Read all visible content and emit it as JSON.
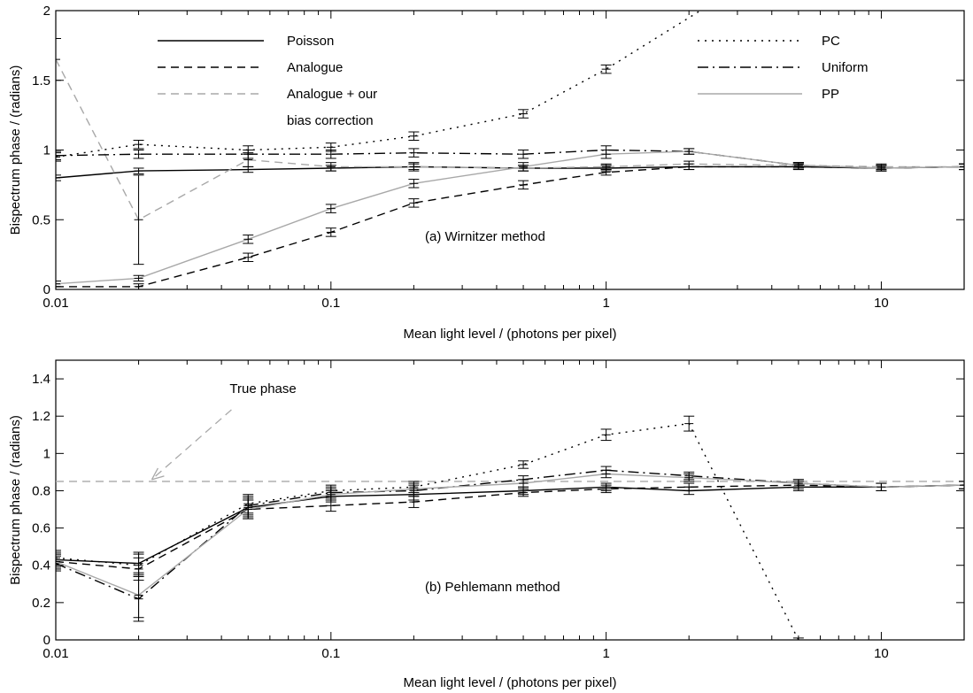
{
  "chart_data": [
    {
      "type": "line",
      "panel_label": "(a) Wirnitzer method",
      "xlabel": "Mean light level / (photons per pixel)",
      "ylabel": "Bispectrum phase / (radians)",
      "xscale": "log",
      "xlim": [
        0.01,
        20
      ],
      "ylim": [
        0,
        2
      ],
      "xticks": [
        0.01,
        0.1,
        1,
        10
      ],
      "xtick_labels": [
        "0.01",
        "0.1",
        "1",
        "10"
      ],
      "yticks": [
        0,
        0.5,
        1,
        1.5,
        2
      ],
      "ytick_labels": [
        "0",
        "0.5",
        "1",
        "1.5",
        "2"
      ],
      "legend": {
        "placement": "top",
        "entries": [
          {
            "series": "Poisson",
            "label": "Poisson"
          },
          {
            "series": "Analogue",
            "label": "Analogue"
          },
          {
            "series": "Analogue + our bias correction",
            "label_lines": [
              "Analogue + our",
              "bias correction"
            ]
          },
          {
            "series": "PC",
            "label": "PC"
          },
          {
            "series": "Uniform",
            "label": "Uniform"
          },
          {
            "series": "PP",
            "label": "PP"
          }
        ]
      },
      "series": [
        {
          "name": "Poisson",
          "color": "#000000",
          "dash": "solid",
          "x": [
            0.01,
            0.02,
            0.05,
            0.1,
            0.2,
            0.5,
            1,
            2,
            5,
            10,
            20
          ],
          "y": [
            0.8,
            0.85,
            0.86,
            0.87,
            0.88,
            0.87,
            0.87,
            0.88,
            0.88,
            0.87,
            0.88
          ],
          "err": [
            0.02,
            0.02,
            0.02,
            0.02,
            0.02,
            0.02,
            0.02,
            0.02,
            0.02,
            0.02,
            0.02
          ]
        },
        {
          "name": "Analogue",
          "color": "#000000",
          "dash": "dashed",
          "x": [
            0.01,
            0.02,
            0.05,
            0.1,
            0.2,
            0.5,
            1,
            2,
            5,
            10,
            20
          ],
          "y": [
            0.02,
            0.02,
            0.23,
            0.41,
            0.62,
            0.75,
            0.84,
            0.88,
            0.88,
            0.87,
            0.88
          ],
          "err": [
            0.02,
            0.02,
            0.03,
            0.03,
            0.03,
            0.03,
            0.02,
            0.02,
            0.02,
            0.02,
            0.02
          ]
        },
        {
          "name": "Analogue + our bias correction",
          "color": "#a8a8a8",
          "dash": "dashed",
          "x": [
            0.01,
            0.02,
            0.05,
            0.1,
            0.2,
            0.5,
            1,
            2,
            5,
            10,
            20
          ],
          "y": [
            1.65,
            0.5,
            0.93,
            0.88,
            0.88,
            0.87,
            0.88,
            0.9,
            0.89,
            0.88,
            0.88
          ],
          "err": [
            0.15,
            0.32,
            0.05,
            0.03,
            0.03,
            0.02,
            0.02,
            0.02,
            0.02,
            0.02,
            0.02
          ]
        },
        {
          "name": "PC",
          "color": "#000000",
          "dash": "dotted",
          "x": [
            0.01,
            0.02,
            0.05,
            0.1,
            0.2,
            0.5,
            1,
            2.2
          ],
          "y": [
            0.95,
            1.04,
            1.0,
            1.02,
            1.1,
            1.26,
            1.58,
            2.0
          ],
          "err": [
            0.03,
            0.03,
            0.03,
            0.03,
            0.03,
            0.03,
            0.03,
            0
          ]
        },
        {
          "name": "Uniform",
          "color": "#000000",
          "dash": "dashdot",
          "x": [
            0.01,
            0.02,
            0.05,
            0.1,
            0.2,
            0.5,
            1,
            2,
            5,
            10,
            20
          ],
          "y": [
            0.96,
            0.97,
            0.97,
            0.97,
            0.98,
            0.97,
            1.0,
            0.99,
            0.89,
            0.87,
            0.88
          ],
          "err": [
            0.03,
            0.03,
            0.03,
            0.03,
            0.03,
            0.03,
            0.03,
            0.02,
            0.02,
            0.02,
            0.02
          ]
        },
        {
          "name": "PP",
          "color": "#a8a8a8",
          "dash": "solid",
          "x": [
            0.01,
            0.02,
            0.05,
            0.1,
            0.2,
            0.5,
            1,
            2,
            5,
            10,
            20
          ],
          "y": [
            0.04,
            0.08,
            0.36,
            0.58,
            0.76,
            0.88,
            0.97,
            0.99,
            0.89,
            0.87,
            0.88
          ],
          "err": [
            0.02,
            0.02,
            0.03,
            0.03,
            0.03,
            0.03,
            0.03,
            0.02,
            0.02,
            0.02,
            0.02
          ]
        }
      ]
    },
    {
      "type": "line",
      "panel_label": "(b) Pehlemann method",
      "xlabel": "Mean light level / (photons per pixel)",
      "ylabel": "Bispectrum phase / (radians)",
      "xscale": "log",
      "xlim": [
        0.01,
        20
      ],
      "ylim": [
        0,
        1.5
      ],
      "xticks": [
        0.01,
        0.1,
        1,
        10
      ],
      "xtick_labels": [
        "0.01",
        "0.1",
        "1",
        "10"
      ],
      "yticks": [
        0,
        0.2,
        0.4,
        0.6,
        0.8,
        1,
        1.2,
        1.4
      ],
      "ytick_labels": [
        "0",
        "0.2",
        "0.4",
        "0.6",
        "0.8",
        "1",
        "1.2",
        "1.4"
      ],
      "annotations": [
        {
          "text": "True phase",
          "x": 0.022,
          "y": 0.85
        }
      ],
      "reference_line": {
        "name": "True phase",
        "y": 0.85,
        "color": "#a8a8a8",
        "dash": "dashed"
      },
      "series": [
        {
          "name": "Poisson",
          "color": "#000000",
          "dash": "solid",
          "x": [
            0.01,
            0.02,
            0.05,
            0.1,
            0.2,
            0.5,
            1,
            2,
            5,
            10,
            20
          ],
          "y": [
            0.43,
            0.41,
            0.71,
            0.77,
            0.78,
            0.8,
            0.82,
            0.8,
            0.82,
            0.82,
            0.83
          ],
          "err": [
            0.04,
            0.06,
            0.05,
            0.03,
            0.03,
            0.02,
            0.02,
            0.02,
            0.02,
            0.02,
            0.02
          ]
        },
        {
          "name": "Analogue",
          "color": "#000000",
          "dash": "dashed",
          "x": [
            0.01,
            0.02,
            0.05,
            0.1,
            0.2,
            0.5,
            1,
            2,
            5,
            10,
            20
          ],
          "y": [
            0.42,
            0.38,
            0.7,
            0.72,
            0.74,
            0.79,
            0.81,
            0.82,
            0.83,
            0.82,
            0.83
          ],
          "err": [
            0.04,
            0.06,
            0.05,
            0.03,
            0.03,
            0.02,
            0.02,
            0.02,
            0.02,
            0.02,
            0.02
          ]
        },
        {
          "name": "PC",
          "color": "#000000",
          "dash": "dotted",
          "x": [
            0.01,
            0.02,
            0.05,
            0.1,
            0.2,
            0.5,
            1,
            2,
            5
          ],
          "y": [
            0.44,
            0.4,
            0.73,
            0.8,
            0.82,
            0.94,
            1.1,
            1.16,
            0.0
          ],
          "err": [
            0.04,
            0.06,
            0.05,
            0.03,
            0.03,
            0.02,
            0.03,
            0.04,
            0.01
          ]
        },
        {
          "name": "Uniform",
          "color": "#000000",
          "dash": "dashdot",
          "x": [
            0.01,
            0.02,
            0.05,
            0.1,
            0.2,
            0.5,
            1,
            2,
            5,
            10,
            20
          ],
          "y": [
            0.41,
            0.22,
            0.72,
            0.79,
            0.8,
            0.86,
            0.91,
            0.88,
            0.84,
            0.82,
            0.83
          ],
          "err": [
            0.04,
            0.12,
            0.05,
            0.03,
            0.03,
            0.02,
            0.02,
            0.02,
            0.02,
            0.02,
            0.02
          ]
        },
        {
          "name": "PP",
          "color": "#a8a8a8",
          "dash": "solid",
          "x": [
            0.01,
            0.02,
            0.05,
            0.1,
            0.2,
            0.5,
            1,
            2,
            5,
            10,
            20
          ],
          "y": [
            0.42,
            0.24,
            0.7,
            0.78,
            0.81,
            0.84,
            0.89,
            0.87,
            0.84,
            0.82,
            0.83
          ],
          "err": [
            0.04,
            0.12,
            0.05,
            0.03,
            0.03,
            0.02,
            0.02,
            0.02,
            0.02,
            0.02,
            0.02
          ]
        }
      ]
    }
  ]
}
